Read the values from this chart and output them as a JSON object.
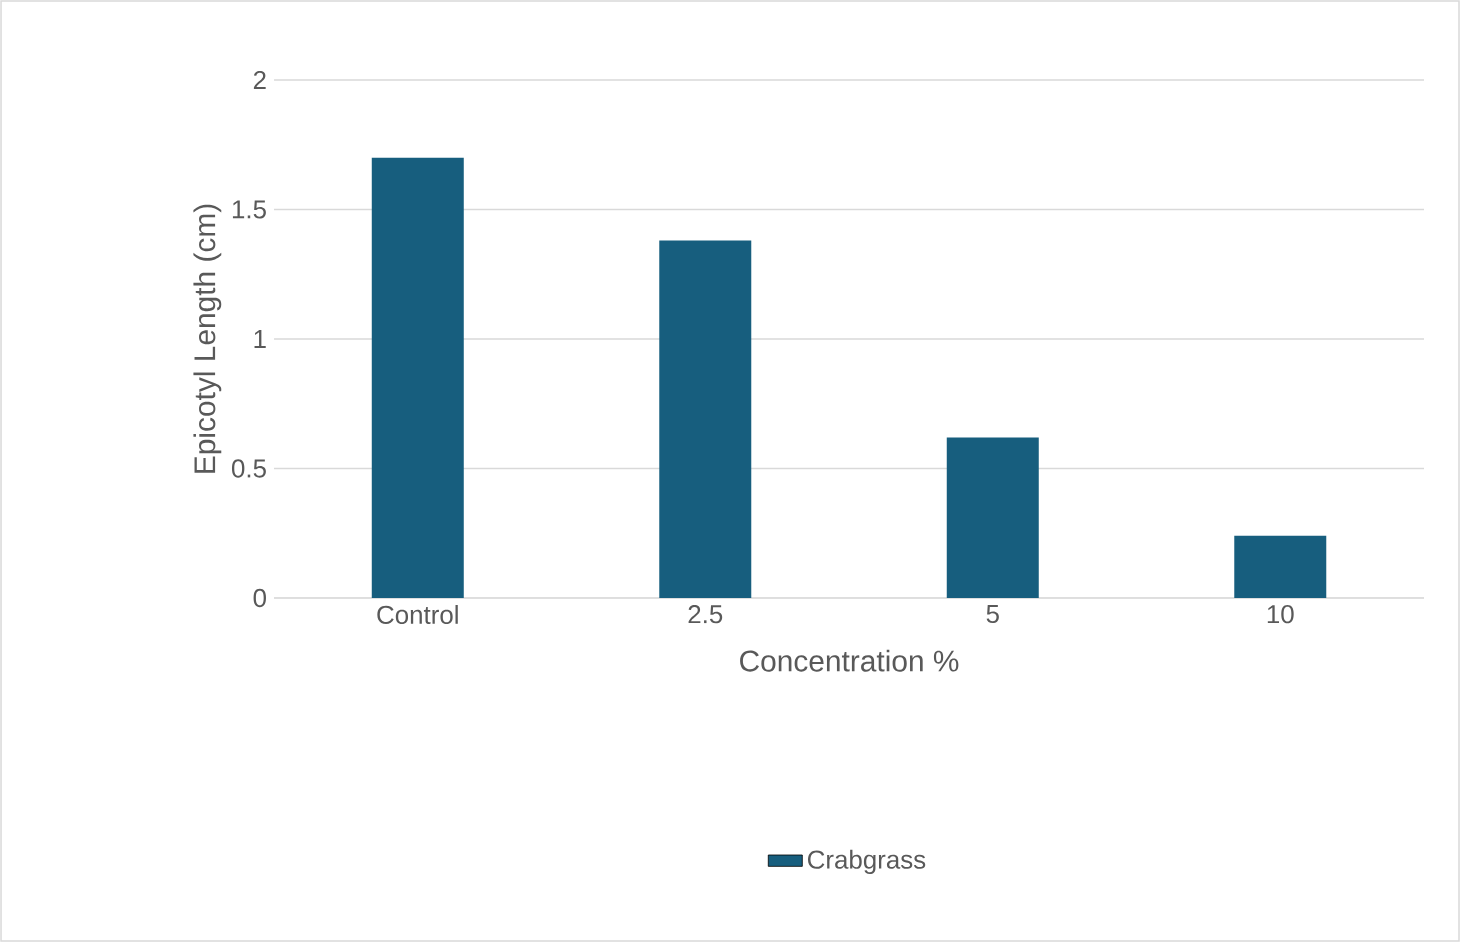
{
  "chart_data": {
    "type": "bar",
    "xlabel": "Concentration %",
    "ylabel": "Epicotyl Length (cm)",
    "categories": [
      "Control",
      "2.5",
      "5",
      "10"
    ],
    "series": [
      {
        "name": "Crabgrass",
        "color": "#175e7e",
        "values": [
          1.7,
          1.38,
          0.62,
          0.24
        ]
      }
    ],
    "ylim": [
      0,
      2
    ],
    "yticks": [
      0,
      0.5,
      1,
      1.5,
      2
    ],
    "grid": "y",
    "legend": "bottom"
  }
}
